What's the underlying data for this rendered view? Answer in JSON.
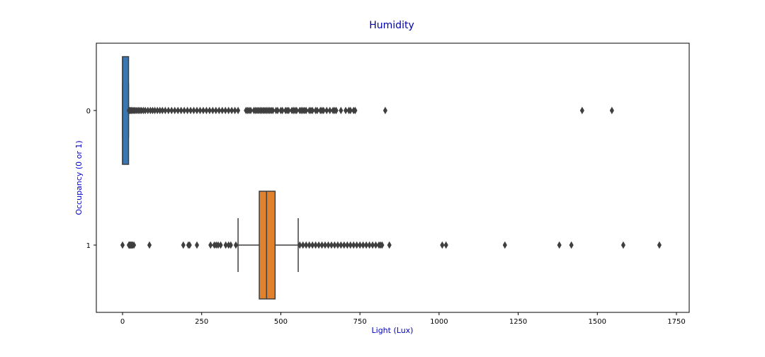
{
  "chart_data": {
    "type": "boxplot",
    "orientation": "horizontal",
    "title": "Humidity",
    "xlabel": "Light (Lux)",
    "ylabel": "Occupancy (0 or 1)",
    "xlim": [
      -80,
      1785
    ],
    "xticks": [
      0,
      250,
      500,
      750,
      1000,
      1250,
      1500,
      1750
    ],
    "categories": [
      "0",
      "1"
    ],
    "grid": false,
    "series": [
      {
        "category": "0",
        "color": "#3a76b0",
        "min": 0,
        "q1": 0,
        "median": 0,
        "q3": 19,
        "max": 19,
        "outliers": [
          20,
          22,
          25,
          28,
          32,
          36,
          40,
          45,
          50,
          55,
          60,
          66,
          72,
          80,
          88,
          95,
          102,
          110,
          118,
          126,
          135,
          145,
          155,
          165,
          175,
          185,
          195,
          205,
          215,
          225,
          235,
          245,
          255,
          265,
          275,
          285,
          295,
          305,
          315,
          325,
          335,
          345,
          355,
          365,
          390,
          395,
          400,
          405,
          415,
          420,
          425,
          430,
          435,
          440,
          445,
          450,
          455,
          460,
          465,
          470,
          475,
          485,
          490,
          500,
          505,
          515,
          520,
          525,
          535,
          540,
          545,
          550,
          560,
          565,
          570,
          575,
          580,
          590,
          595,
          600,
          610,
          615,
          625,
          630,
          635,
          645,
          655,
          665,
          670,
          675,
          690,
          705,
          715,
          720,
          730,
          735,
          830,
          1452,
          1546
        ]
      },
      {
        "category": "1",
        "color": "#e1812c",
        "min": 365,
        "q1": 432,
        "median": 455,
        "q3": 482,
        "max": 555,
        "outliers": [
          0,
          20,
          22,
          24,
          26,
          28,
          30,
          32,
          36,
          85,
          192,
          208,
          212,
          235,
          278,
          290,
          296,
          302,
          310,
          326,
          335,
          342,
          358,
          560,
          570,
          580,
          590,
          600,
          610,
          620,
          630,
          640,
          650,
          660,
          670,
          680,
          690,
          700,
          710,
          720,
          730,
          740,
          750,
          760,
          770,
          780,
          790,
          800,
          810,
          815,
          820,
          843,
          1010,
          1022,
          1208,
          1380,
          1418,
          1582,
          1696
        ]
      }
    ]
  }
}
